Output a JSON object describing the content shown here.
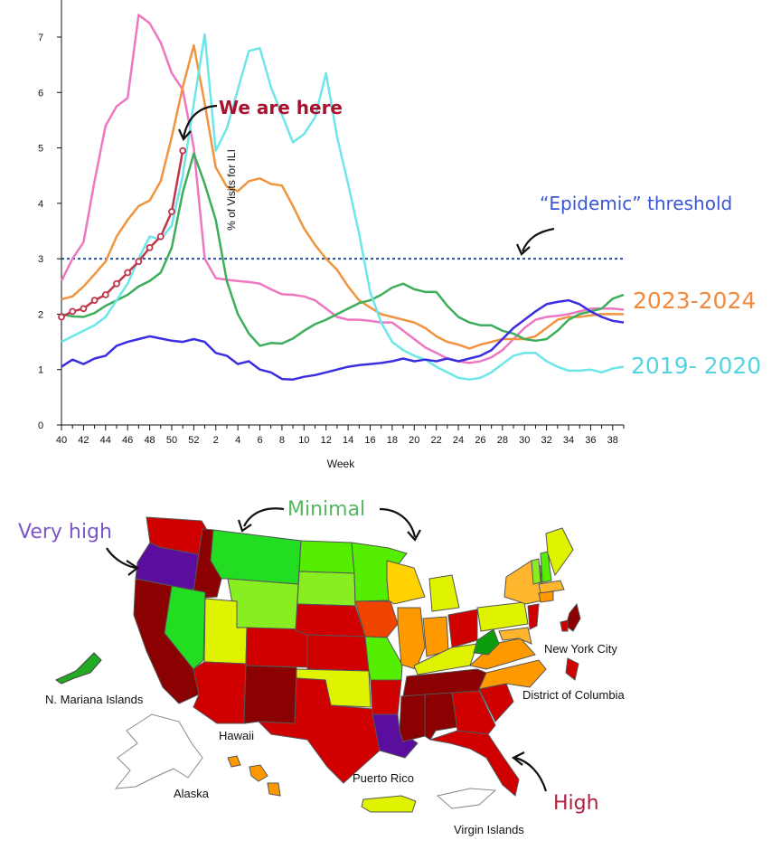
{
  "chart_data": {
    "type": "line",
    "xlabel": "Week",
    "ylabel": "% of Visits for ILI",
    "ylim": [
      0,
      7.5
    ],
    "y_ticks": [
      "0",
      "1",
      "2",
      "3",
      "4",
      "5",
      "6",
      "7"
    ],
    "x_ticks": [
      "40",
      "42",
      "44",
      "46",
      "48",
      "50",
      "52",
      "2",
      "4",
      "6",
      "8",
      "10",
      "12",
      "14",
      "16",
      "18",
      "20",
      "22",
      "24",
      "26",
      "28",
      "30",
      "32",
      "34",
      "36",
      "38"
    ],
    "threshold": 3,
    "series": [
      {
        "name": "",
        "color": "#ee77c2",
        "values": [
          2.6,
          3.0,
          3.3,
          4.4,
          5.4,
          5.75,
          5.9,
          7.4,
          7.25,
          6.9,
          6.35,
          6.05,
          5.0,
          3.0,
          2.65,
          2.62,
          2.6,
          2.58,
          2.55,
          2.45,
          2.36,
          2.35,
          2.32,
          2.25,
          2.1,
          1.95,
          1.9,
          1.9,
          1.88,
          1.85,
          1.85,
          1.7,
          1.55,
          1.4,
          1.3,
          1.2,
          1.15,
          1.12,
          1.15,
          1.22,
          1.35,
          1.55,
          1.75,
          1.9,
          1.95,
          1.97,
          2.0,
          2.05,
          2.1,
          2.1,
          2.1,
          2.08
        ]
      },
      {
        "name": "2023-2024",
        "color": "#f09440",
        "values": [
          2.27,
          2.32,
          2.5,
          2.72,
          2.95,
          3.4,
          3.7,
          3.95,
          4.05,
          4.4,
          5.2,
          6.1,
          6.85,
          5.8,
          4.65,
          4.3,
          4.22,
          4.4,
          4.45,
          4.35,
          4.32,
          3.95,
          3.55,
          3.25,
          3.0,
          2.8,
          2.5,
          2.25,
          2.12,
          2.0,
          1.95,
          1.9,
          1.85,
          1.75,
          1.6,
          1.5,
          1.45,
          1.38,
          1.45,
          1.5,
          1.55,
          1.55,
          1.55,
          1.6,
          1.75,
          1.9,
          1.95,
          1.95,
          1.98,
          2.0,
          2.0,
          2.0
        ]
      },
      {
        "name": "",
        "color": "#3cae5c",
        "values": [
          2.0,
          1.96,
          1.95,
          2.02,
          2.15,
          2.25,
          2.35,
          2.5,
          2.6,
          2.75,
          3.2,
          4.2,
          4.9,
          4.35,
          3.7,
          2.6,
          2.0,
          1.65,
          1.43,
          1.48,
          1.47,
          1.56,
          1.7,
          1.82,
          1.9,
          2.0,
          2.1,
          2.2,
          2.25,
          2.35,
          2.48,
          2.55,
          2.45,
          2.4,
          2.4,
          2.15,
          1.95,
          1.85,
          1.8,
          1.8,
          1.7,
          1.65,
          1.55,
          1.52,
          1.55,
          1.7,
          1.9,
          2.0,
          2.05,
          2.1,
          2.28,
          2.35
        ]
      },
      {
        "name": "2019- 2020",
        "color": "#6de6ea",
        "values": [
          1.5,
          1.6,
          1.7,
          1.8,
          1.95,
          2.25,
          2.55,
          3.0,
          3.4,
          3.35,
          3.6,
          4.5,
          5.8,
          7.05,
          4.95,
          5.35,
          6.05,
          6.75,
          6.8,
          6.1,
          5.6,
          5.1,
          5.25,
          5.55,
          6.35,
          5.2,
          4.35,
          3.45,
          2.4,
          1.85,
          1.5,
          1.35,
          1.25,
          1.18,
          1.05,
          0.95,
          0.85,
          0.82,
          0.85,
          0.95,
          1.1,
          1.25,
          1.3,
          1.3,
          1.15,
          1.05,
          0.98,
          0.98,
          1.0,
          0.95,
          1.02,
          1.05
        ]
      },
      {
        "name": "",
        "color": "#3b2ee0",
        "values": [
          1.05,
          1.18,
          1.1,
          1.2,
          1.25,
          1.43,
          1.5,
          1.55,
          1.6,
          1.56,
          1.52,
          1.5,
          1.55,
          1.5,
          1.3,
          1.25,
          1.1,
          1.15,
          1.0,
          0.95,
          0.83,
          0.82,
          0.87,
          0.9,
          0.95,
          1.0,
          1.05,
          1.08,
          1.1,
          1.12,
          1.15,
          1.2,
          1.15,
          1.18,
          1.15,
          1.2,
          1.15,
          1.2,
          1.25,
          1.35,
          1.55,
          1.75,
          1.9,
          2.05,
          2.18,
          2.22,
          2.25,
          2.18,
          2.05,
          1.95,
          1.88,
          1.85
        ]
      },
      {
        "name": "",
        "color": "#c0364a",
        "markers": true,
        "values": [
          1.95,
          2.05,
          2.1,
          2.25,
          2.35,
          2.55,
          2.75,
          2.95,
          3.2,
          3.4,
          3.85,
          4.95
        ]
      }
    ]
  },
  "annotations": {
    "we_are_here": "We are here",
    "epidemic_threshold": "“Epidemic” threshold",
    "legend_2023": "2023-2024",
    "legend_2019": "2019- 2020"
  },
  "map": {
    "legend_minimal": "Minimal",
    "legend_very_high": "Very high",
    "legend_high": "High",
    "labels": {
      "mariana": "N. Mariana Islands",
      "hawaii": "Hawaii",
      "alaska": "Alaska",
      "puerto_rico": "Puerto Rico",
      "virgin_islands": "Virgin Islands",
      "nyc": "New York City",
      "dc": "District of Columbia"
    },
    "colors": {
      "very_high_purple": "#5b0e9e",
      "high_darkred": "#8b0000",
      "high_red": "#d10000",
      "orange_red": "#ee4400",
      "orange": "#ff9900",
      "light_orange": "#ffb52e",
      "yellow": "#dff200",
      "light_green": "#88ee22",
      "green": "#22dd22",
      "bright_green": "#55ee00",
      "dark_green": "#0b9c0b"
    }
  }
}
